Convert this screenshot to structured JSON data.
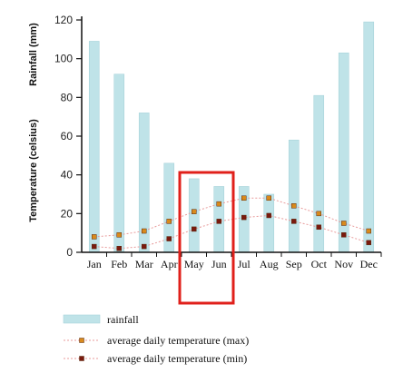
{
  "chart_data": {
    "type": "bar",
    "categories": [
      "Jan",
      "Feb",
      "Mar",
      "Apr",
      "May",
      "Jun",
      "Jul",
      "Aug",
      "Sep",
      "Oct",
      "Nov",
      "Dec"
    ],
    "series": [
      {
        "name": "rainfall",
        "kind": "bar",
        "color": "#bfe3e8",
        "values": [
          109,
          92,
          72,
          46,
          38,
          34,
          34,
          30,
          58,
          81,
          103,
          119
        ]
      },
      {
        "name": "average daily temperature (max)",
        "kind": "line",
        "color": "#d98a1c",
        "values": [
          8,
          9,
          11,
          16,
          21,
          25,
          28,
          28,
          24,
          20,
          15,
          11
        ]
      },
      {
        "name": "average daily temperature (min)",
        "kind": "line",
        "color": "#7a1a0e",
        "values": [
          3,
          2,
          3,
          7,
          12,
          16,
          18,
          19,
          16,
          13,
          9,
          5
        ]
      }
    ],
    "ylabel_left_top": "Rainfall (mm)",
    "ylabel_left_bottom": "Temperature (celsius)",
    "ylim": [
      0,
      120
    ],
    "yticks": [
      0,
      20,
      40,
      60,
      80,
      100,
      120
    ],
    "grid": false,
    "legend_position": "bottom-left",
    "highlight": {
      "categories": [
        "May",
        "Jun"
      ],
      "color": "#e0201b"
    }
  }
}
